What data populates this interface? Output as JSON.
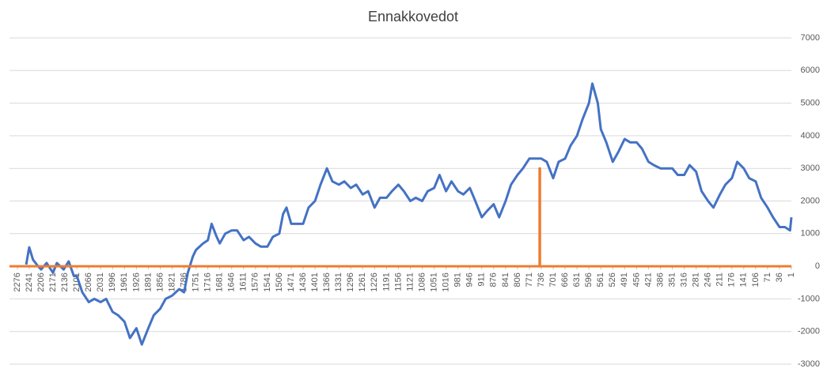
{
  "chart_data": {
    "type": "line",
    "title": "Ennakkovedot",
    "xlim": [
      2299,
      1
    ],
    "xticks": [
      2276,
      2241,
      2206,
      2171,
      2136,
      2101,
      2066,
      2031,
      1996,
      1961,
      1926,
      1891,
      1856,
      1821,
      1786,
      1751,
      1716,
      1681,
      1646,
      1611,
      1576,
      1541,
      1506,
      1471,
      1436,
      1401,
      1366,
      1331,
      1296,
      1261,
      1226,
      1191,
      1156,
      1121,
      1086,
      1051,
      1016,
      981,
      946,
      911,
      876,
      841,
      806,
      771,
      736,
      701,
      666,
      631,
      596,
      561,
      526,
      491,
      456,
      421,
      386,
      351,
      316,
      281,
      246,
      211,
      176,
      141,
      106,
      71,
      36,
      1
    ],
    "ylim": [
      -3000,
      7000
    ],
    "yticks": [
      -3000,
      -2000,
      -1000,
      0,
      1000,
      2000,
      3000,
      4000,
      5000,
      6000,
      7000
    ],
    "grid": true,
    "series": [
      {
        "color": "#4472c4",
        "x": [
          2250,
          2241,
          2230,
          2215,
          2206,
          2190,
          2171,
          2160,
          2140,
          2125,
          2110,
          2101,
          2085,
          2066,
          2050,
          2031,
          2015,
          1996,
          1980,
          1961,
          1945,
          1926,
          1910,
          1891,
          1875,
          1856,
          1840,
          1821,
          1800,
          1786,
          1775,
          1760,
          1751,
          1730,
          1716,
          1705,
          1690,
          1681,
          1665,
          1646,
          1630,
          1611,
          1595,
          1576,
          1560,
          1541,
          1525,
          1506,
          1495,
          1485,
          1471,
          1455,
          1436,
          1420,
          1401,
          1385,
          1366,
          1350,
          1331,
          1315,
          1296,
          1280,
          1261,
          1245,
          1226,
          1210,
          1191,
          1175,
          1156,
          1140,
          1121,
          1105,
          1086,
          1070,
          1051,
          1035,
          1016,
          1000,
          981,
          965,
          946,
          930,
          911,
          895,
          876,
          860,
          841,
          825,
          806,
          790,
          771,
          755,
          736,
          720,
          701,
          685,
          666,
          650,
          631,
          615,
          596,
          586,
          570,
          561,
          545,
          526,
          510,
          491,
          475,
          456,
          440,
          421,
          405,
          386,
          370,
          351,
          335,
          316,
          300,
          281,
          265,
          246,
          230,
          211,
          195,
          176,
          160,
          141,
          125,
          106,
          90,
          71,
          55,
          36,
          20,
          5,
          1
        ],
        "values": [
          50,
          580,
          200,
          0,
          -100,
          100,
          -200,
          100,
          -100,
          150,
          -300,
          -300,
          -800,
          -1100,
          -1000,
          -1100,
          -1000,
          -1400,
          -1500,
          -1700,
          -2200,
          -1900,
          -2400,
          -1900,
          -1500,
          -1300,
          -1000,
          -900,
          -700,
          -800,
          -200,
          300,
          500,
          700,
          800,
          1300,
          900,
          700,
          1000,
          1100,
          1100,
          800,
          900,
          700,
          600,
          600,
          900,
          1000,
          1600,
          1800,
          1300,
          1300,
          1300,
          1800,
          2000,
          2500,
          3000,
          2600,
          2500,
          2600,
          2400,
          2500,
          2200,
          2300,
          1800,
          2100,
          2100,
          2300,
          2500,
          2300,
          2000,
          2100,
          2000,
          2300,
          2400,
          2800,
          2300,
          2600,
          2300,
          2200,
          2400,
          2000,
          1500,
          1700,
          1900,
          1500,
          2000,
          2500,
          2800,
          3000,
          3300,
          3300,
          3300,
          3200,
          2700,
          3200,
          3300,
          3700,
          4000,
          4500,
          5000,
          5600,
          5000,
          4200,
          3800,
          3200,
          3500,
          3900,
          3800,
          3800,
          3600,
          3200,
          3100,
          3000,
          3000,
          3000,
          2800,
          2800,
          3100,
          2900,
          2300,
          2000,
          1800,
          2200,
          2500,
          2700,
          3200,
          3000,
          2700,
          2600,
          2100,
          1800,
          1500,
          1200,
          1200,
          1100,
          1500
        ]
      },
      {
        "color": "#ed7d31",
        "x": [
          2299,
          741,
          741,
          740,
          740,
          1
        ],
        "values": [
          0,
          0,
          3000,
          3000,
          0,
          0
        ]
      }
    ]
  }
}
